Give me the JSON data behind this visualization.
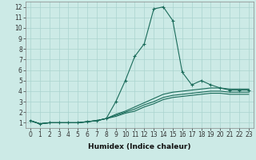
{
  "xlabel": "Humidex (Indice chaleur)",
  "xlim": [
    -0.5,
    23.5
  ],
  "ylim": [
    0.5,
    12.5
  ],
  "xticks": [
    0,
    1,
    2,
    3,
    4,
    5,
    6,
    7,
    8,
    9,
    10,
    11,
    12,
    13,
    14,
    15,
    16,
    17,
    18,
    19,
    20,
    21,
    22,
    23
  ],
  "yticks": [
    1,
    2,
    3,
    4,
    5,
    6,
    7,
    8,
    9,
    10,
    11,
    12
  ],
  "bg_color": "#cceae6",
  "grid_color": "#aad4ce",
  "line_color": "#1a6b5a",
  "series": [
    [
      1.2,
      0.9,
      1.0,
      1.0,
      1.0,
      1.0,
      1.1,
      1.2,
      1.4,
      3.0,
      5.0,
      7.3,
      8.5,
      11.8,
      12.0,
      10.7,
      5.8,
      4.6,
      5.0,
      4.6,
      4.3,
      4.1,
      4.1,
      4.1
    ],
    [
      1.2,
      0.9,
      1.0,
      1.0,
      1.0,
      1.0,
      1.1,
      1.2,
      1.4,
      1.8,
      2.1,
      2.5,
      2.9,
      3.3,
      3.7,
      3.9,
      4.0,
      4.1,
      4.2,
      4.3,
      4.3,
      4.2,
      4.2,
      4.2
    ],
    [
      1.2,
      0.9,
      1.0,
      1.0,
      1.0,
      1.0,
      1.1,
      1.2,
      1.4,
      1.7,
      2.0,
      2.3,
      2.7,
      3.0,
      3.4,
      3.6,
      3.7,
      3.8,
      3.9,
      4.0,
      4.0,
      3.9,
      3.9,
      3.9
    ],
    [
      1.2,
      0.9,
      1.0,
      1.0,
      1.0,
      1.0,
      1.1,
      1.2,
      1.4,
      1.6,
      1.9,
      2.1,
      2.5,
      2.8,
      3.2,
      3.4,
      3.5,
      3.6,
      3.7,
      3.8,
      3.8,
      3.7,
      3.7,
      3.7
    ]
  ],
  "has_markers": [
    true,
    false,
    false,
    false
  ],
  "tick_fontsize": 5.5,
  "xlabel_fontsize": 6.5
}
